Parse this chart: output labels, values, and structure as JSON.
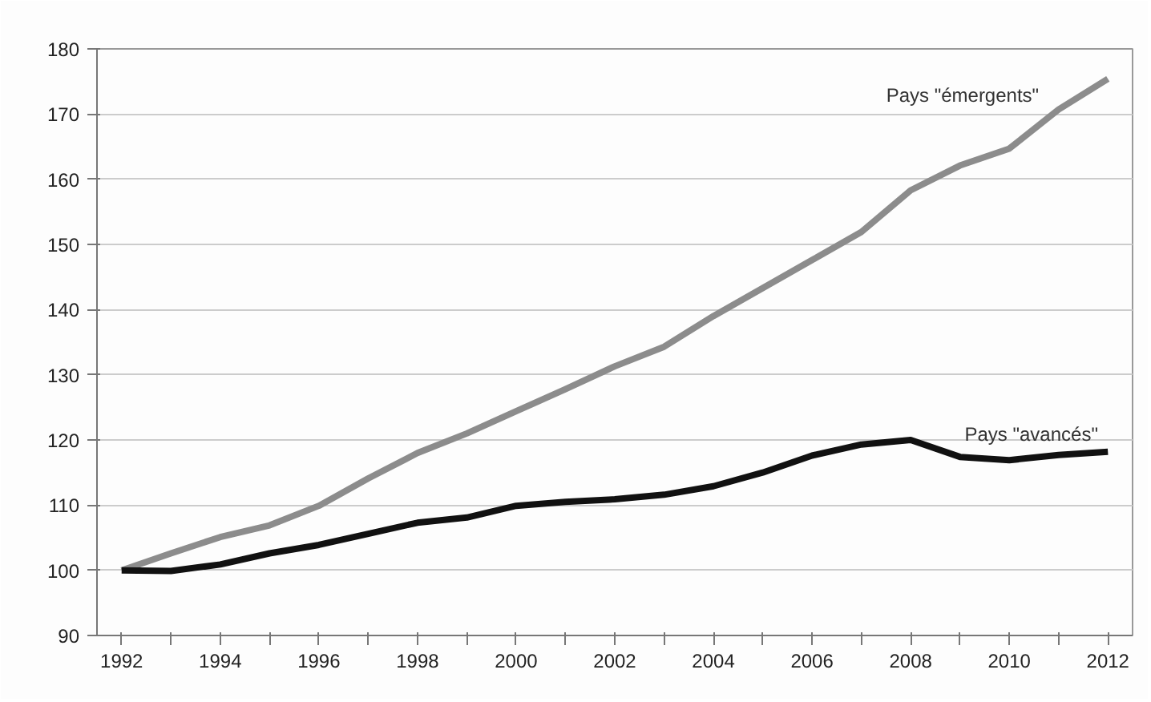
{
  "chart_data": {
    "type": "line",
    "categories": [
      "1992",
      null,
      "1994",
      null,
      "1996",
      null,
      "1998",
      null,
      "2000",
      null,
      "2002",
      null,
      "2004",
      null,
      "2006",
      null,
      "2008",
      null,
      "2010",
      null,
      "2012"
    ],
    "series": [
      {
        "name": "Pays \"émergents\"",
        "color": "#8c8c8c",
        "values": [
          100,
          102.6,
          105.1,
          106.9,
          109.9,
          114.1,
          118,
          121,
          124.4,
          127.8,
          131.3,
          134.3,
          139,
          143.3,
          147.6,
          151.9,
          158.3,
          162.1,
          164.7,
          170.7,
          175.4
        ]
      },
      {
        "name": "Pays \"avancés\"",
        "color": "#111111",
        "values": [
          100,
          99.9,
          100.9,
          102.6,
          103.9,
          105.6,
          107.3,
          108.1,
          109.9,
          110.5,
          110.9,
          111.6,
          112.9,
          115,
          117.6,
          119.3,
          120,
          117.4,
          116.9,
          117.7,
          118.2
        ]
      }
    ],
    "ylim": [
      90,
      180
    ],
    "yticks": [
      90,
      100,
      110,
      120,
      130,
      140,
      150,
      160,
      170,
      180
    ],
    "grid": "y",
    "marker": "none",
    "line_style": "solid"
  }
}
